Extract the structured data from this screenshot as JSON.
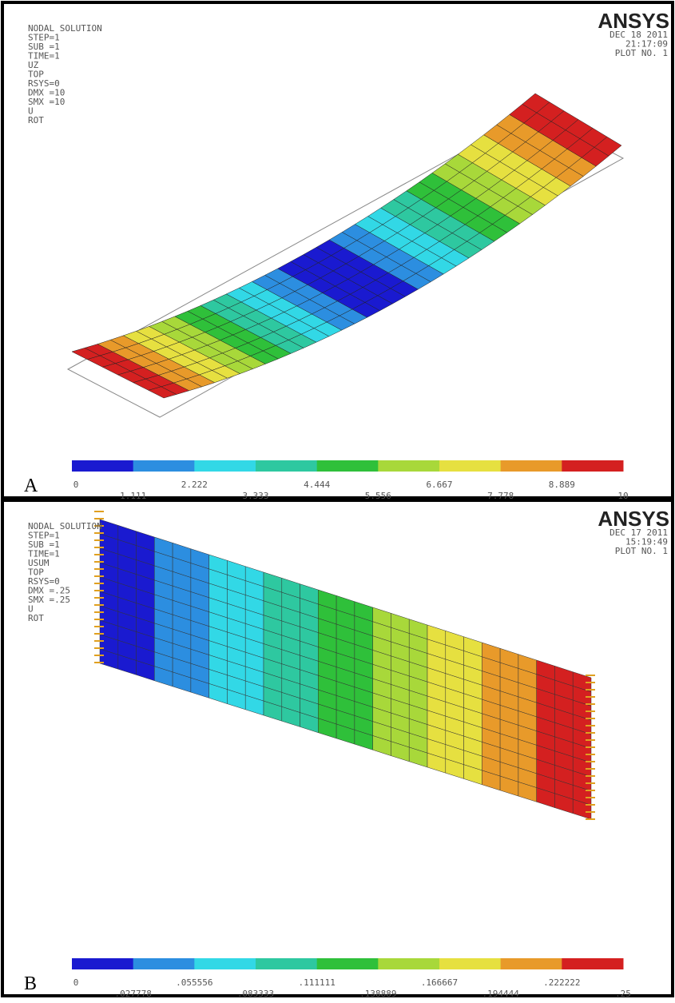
{
  "panels": [
    {
      "letter": "A",
      "logo": "ANSYS",
      "info": [
        "NODAL SOLUTION",
        "STEP=1",
        "SUB =1",
        "TIME=1",
        "UZ",
        "TOP",
        "RSYS=0",
        "DMX =10",
        "SMX =10",
        "U",
        "ROT"
      ],
      "stamp": [
        "DEC 18 2011",
        "21:17:09",
        "PLOT NO.   1"
      ],
      "legend_labels": [
        "0",
        "1.111",
        "2.222",
        "3.333",
        "4.444",
        "5.556",
        "6.667",
        "7.778",
        "8.889",
        "10"
      ]
    },
    {
      "letter": "B",
      "logo": "ANSYS",
      "info": [
        "NODAL SOLUTION",
        "STEP=1",
        "SUB =1",
        "TIME=1",
        "USUM",
        "TOP",
        "RSYS=0",
        "DMX =.25",
        "SMX =.25",
        "U",
        "ROT"
      ],
      "stamp": [
        "DEC 17 2011",
        "15:19:49",
        "PLOT NO.   1"
      ],
      "legend_labels": [
        "0",
        ".027778",
        ".055556",
        ".083333",
        ".111111",
        ".138889",
        ".166667",
        ".194444",
        ".222222",
        ".25"
      ]
    }
  ],
  "colors": [
    "#1a1ad0",
    "#2c8ee0",
    "#32d8e6",
    "#2ec8a0",
    "#2fc03a",
    "#a8d83a",
    "#e6e040",
    "#e89a2a",
    "#d42020"
  ]
}
